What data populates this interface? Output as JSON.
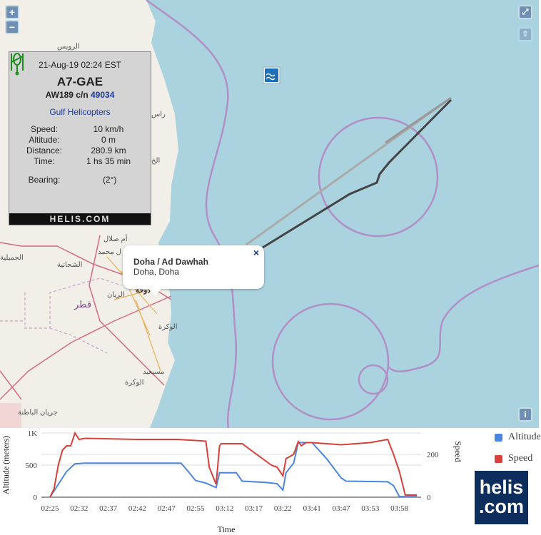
{
  "map": {
    "zoom_in": "+",
    "zoom_out": "−",
    "fullscreen_icon": "expand-icon",
    "north_icon": "arrow-up-icon",
    "info_button": "i",
    "colors": {
      "water": "#aad3df",
      "land": "#f2efe9",
      "boundary": "#b18fc7",
      "track_recent": "#444444",
      "track_old": "#aaaaaa"
    },
    "place_labels": [
      "الرويس",
      "راس",
      "الخ",
      "أم صلال",
      "ل محمد",
      "الجميلية",
      "الشحانية",
      "قطر",
      "الريان",
      "دوحة",
      "الوكرة",
      "مسيعيد",
      "الوكرة",
      "جريان الباطنة"
    ]
  },
  "info_panel": {
    "datetime": "21-Aug-19 02:24 EST",
    "registration": "A7-GAE",
    "model": "AW189 c/n",
    "serial": "49034",
    "operator": "Gulf Helicopters",
    "rows": [
      {
        "label": "Speed:",
        "value": "10 km/h"
      },
      {
        "label": "Altitude:",
        "value": "0 m"
      },
      {
        "label": "Distance:",
        "value": "280.9 km"
      },
      {
        "label": "Time:",
        "value": "1 hs 35 min"
      }
    ],
    "bearing_label": "Bearing:",
    "bearing_value": "(2°)",
    "bearing_icon": "helicopter-icon",
    "footer": "HELIS.COM"
  },
  "popup": {
    "title": "Doha / Ad Dawhah",
    "subtitle": "Doha, Doha",
    "close": "×"
  },
  "chart_data": {
    "type": "line",
    "xlabel": "Time",
    "ylabel": "Altitude (meters)",
    "y2label": "Speed",
    "x_ticks": [
      "02:25",
      "02:32",
      "02:37",
      "02:42",
      "02:47",
      "02:55",
      "03:12",
      "03:17",
      "03:22",
      "03:41",
      "03:47",
      "03:53",
      "03:58"
    ],
    "y_ticks": [
      "0",
      "500",
      "1K"
    ],
    "ylim": [
      0,
      1000
    ],
    "y2_ticks": [
      "0",
      "200"
    ],
    "y2lim": [
      0,
      300
    ],
    "grid": true,
    "legend_position": "right",
    "series": [
      {
        "name": "Altitude",
        "color": "#4a86e0",
        "axis": "left",
        "points": [
          [
            "02:25",
            0
          ],
          [
            "02:27",
            200
          ],
          [
            "02:29",
            400
          ],
          [
            "02:31",
            520
          ],
          [
            "02:33",
            530
          ],
          [
            "02:51",
            530
          ],
          [
            "02:53",
            400
          ],
          [
            "02:55",
            260
          ],
          [
            "03:01",
            220
          ],
          [
            "03:07",
            150
          ],
          [
            "03:09",
            380
          ],
          [
            "03:14",
            380
          ],
          [
            "03:15",
            250
          ],
          [
            "03:19",
            230
          ],
          [
            "03:21",
            210
          ],
          [
            "03:22",
            110
          ],
          [
            "03:24",
            380
          ],
          [
            "03:29",
            530
          ],
          [
            "03:32",
            850
          ],
          [
            "03:41",
            850
          ],
          [
            "03:44",
            600
          ],
          [
            "03:47",
            300
          ],
          [
            "03:48",
            250
          ],
          [
            "03:56",
            240
          ],
          [
            "03:57",
            180
          ],
          [
            "03:58",
            10
          ],
          [
            "04:01",
            10
          ]
        ]
      },
      {
        "name": "Speed",
        "color": "#d9403a",
        "axis": "right",
        "points": [
          [
            "02:25",
            0
          ],
          [
            "02:26",
            40
          ],
          [
            "02:27",
            150
          ],
          [
            "02:28",
            220
          ],
          [
            "02:29",
            240
          ],
          [
            "02:30",
            240
          ],
          [
            "02:31",
            300
          ],
          [
            "02:32",
            270
          ],
          [
            "02:33",
            275
          ],
          [
            "02:42",
            270
          ],
          [
            "02:50",
            270
          ],
          [
            "02:55",
            265
          ],
          [
            "03:01",
            262
          ],
          [
            "03:03",
            140
          ],
          [
            "03:07",
            60
          ],
          [
            "03:09",
            240
          ],
          [
            "03:10",
            250
          ],
          [
            "03:15",
            250
          ],
          [
            "03:17",
            210
          ],
          [
            "03:20",
            150
          ],
          [
            "03:21",
            140
          ],
          [
            "03:22",
            100
          ],
          [
            "03:24",
            180
          ],
          [
            "03:29",
            200
          ],
          [
            "03:32",
            260
          ],
          [
            "03:34",
            240
          ],
          [
            "03:37",
            255
          ],
          [
            "03:41",
            255
          ],
          [
            "03:44",
            250
          ],
          [
            "03:47",
            245
          ],
          [
            "03:50",
            250
          ],
          [
            "03:53",
            255
          ],
          [
            "03:56",
            270
          ],
          [
            "03:57",
            200
          ],
          [
            "03:58",
            120
          ],
          [
            "03:59",
            10
          ],
          [
            "04:01",
            10
          ]
        ]
      }
    ]
  },
  "logo": {
    "line1": "helis",
    "line2": ".com"
  }
}
